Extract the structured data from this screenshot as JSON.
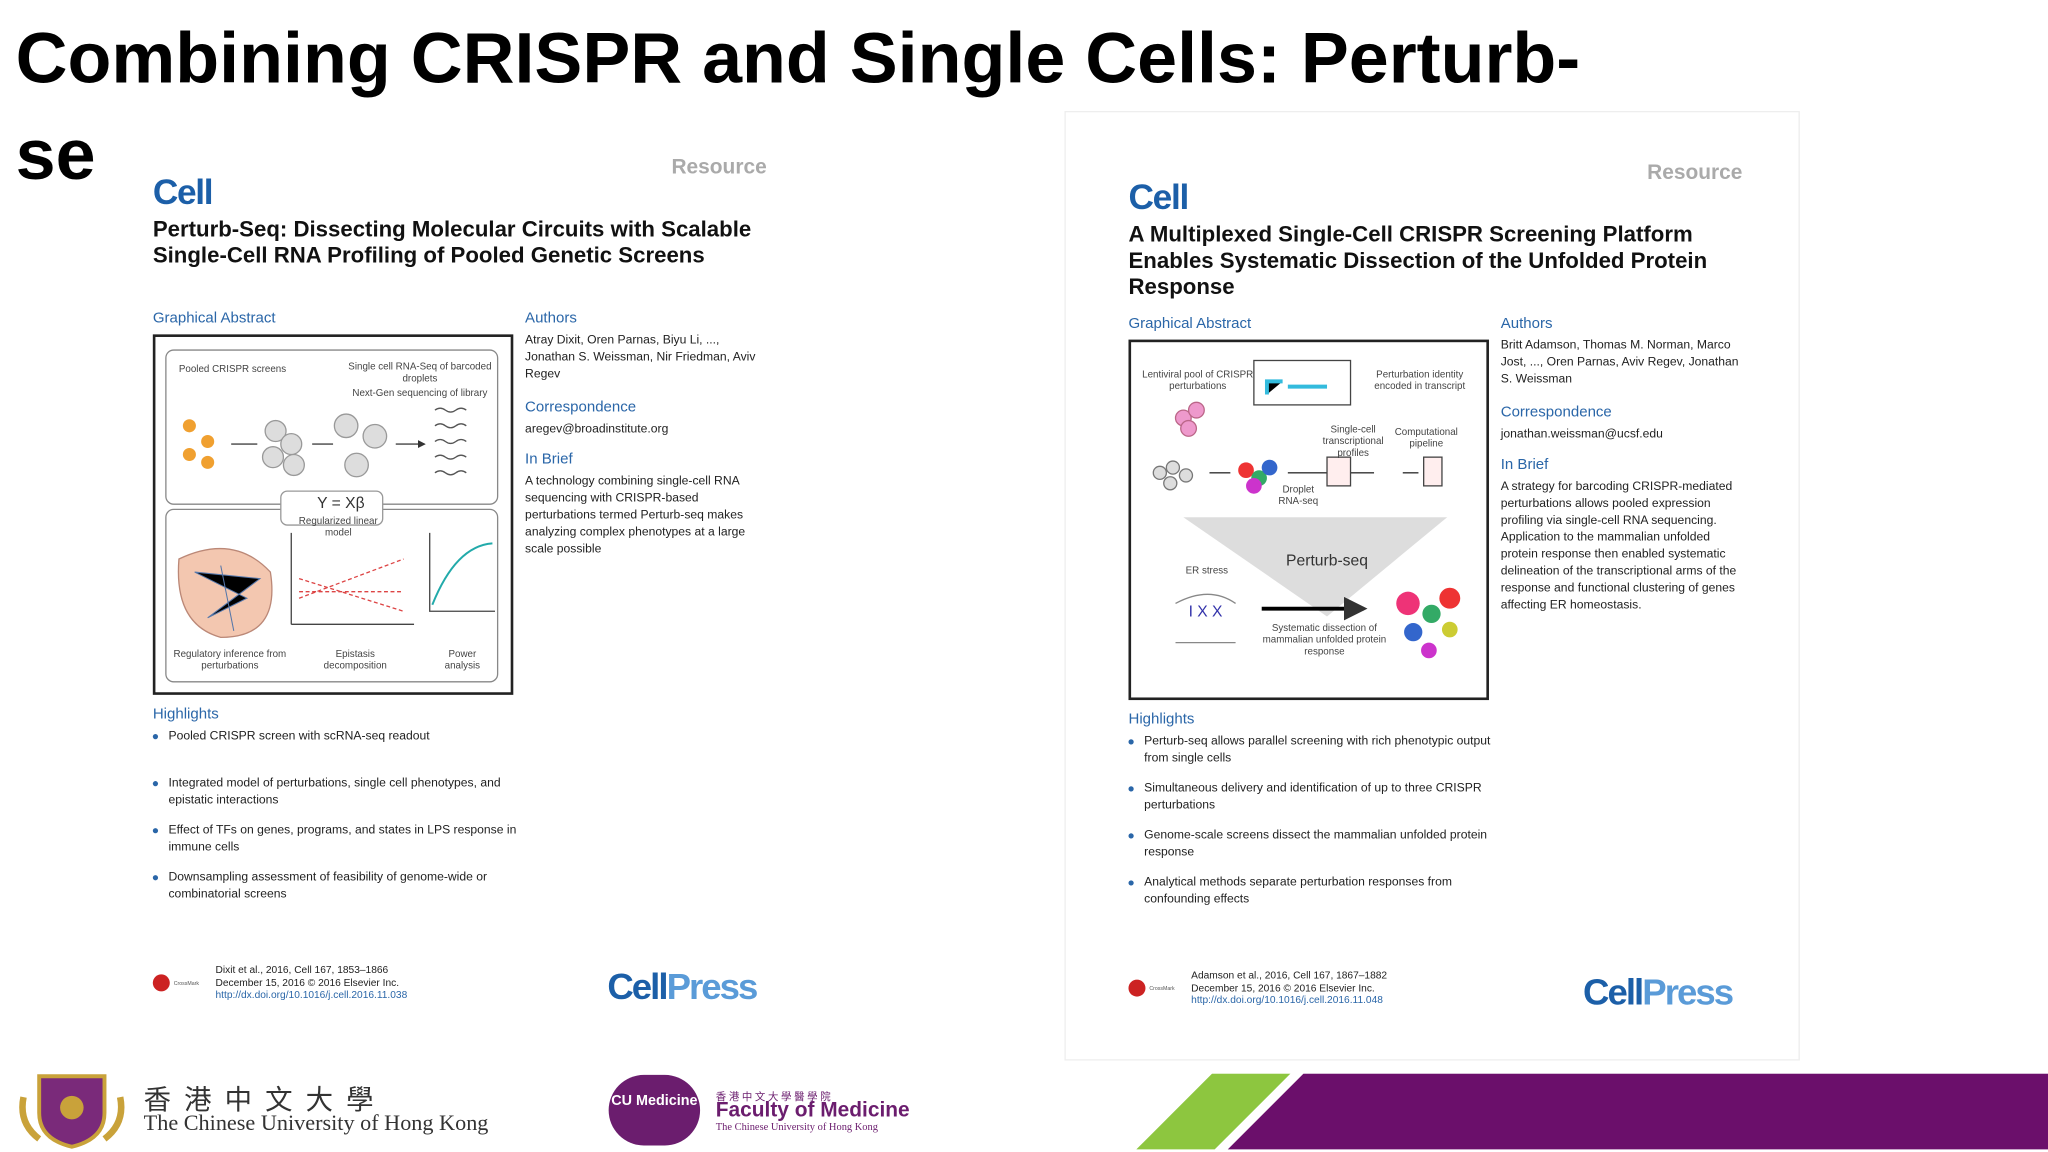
{
  "slide": {
    "title_lines": [
      "Combining CRISPR and Single Cells: Perturb-",
      "se"
    ]
  },
  "papers": [
    {
      "type": "Resource",
      "journal": "Cell",
      "title": "Perturb-Seq: Dissecting Molecular Circuits with Scalable Single-Cell RNA Profiling of Pooled Genetic Screens",
      "graphical_abstract": {
        "heading": "Graphical Abstract",
        "labels": [
          "Pooled CRISPR screens",
          "Single cell RNA-Seq of barcoded droplets",
          "Next-Gen sequencing of library",
          "Y = Xβ",
          "Regularized linear model",
          "Regulatory inference from perturbations",
          "Epistasis decomposition",
          "Power analysis"
        ]
      },
      "authors": {
        "heading": "Authors",
        "text": "Atray Dixit, Oren Parnas, Biyu Li, ..., Jonathan S. Weissman, Nir Friedman, Aviv Regev"
      },
      "correspondence": {
        "heading": "Correspondence",
        "text": "aregev@broadinstitute.org"
      },
      "in_brief": {
        "heading": "In Brief",
        "text": "A technology combining single-cell RNA sequencing with CRISPR-based perturbations termed Perturb-seq makes analyzing complex phenotypes at a large scale possible"
      },
      "highlights": {
        "heading": "Highlights",
        "items": [
          "Pooled CRISPR screen with scRNA-seq readout",
          "Integrated model of perturbations, single cell phenotypes, and epistatic interactions",
          "Effect of TFs on genes, programs, and states in LPS response in immune cells",
          "Downsampling assessment of feasibility of genome-wide or combinatorial screens"
        ]
      },
      "citation": [
        "Dixit et al., 2016, Cell 167, 1853–1866",
        "December 15, 2016 © 2016 Elsevier Inc.",
        "http://dx.doi.org/10.1016/j.cell.2016.11.038"
      ],
      "crossmark": "CrossMark",
      "publisher_parts": [
        "Cell",
        "Press"
      ]
    },
    {
      "type": "Resource",
      "journal": "Cell",
      "title": "A Multiplexed Single-Cell CRISPR Screening Platform Enables Systematic Dissection of the Unfolded Protein Response",
      "graphical_abstract": {
        "heading": "Graphical Abstract",
        "labels": [
          "Lentiviral pool of CRISPR perturbations",
          "Perturbation identity encoded in transcript",
          "Single-cell transcriptional profiles",
          "Computational pipeline",
          "Droplet RNA-seq",
          "Perturb-seq",
          "ER stress",
          "Systematic dissection of mammalian unfolded protein response"
        ]
      },
      "authors": {
        "heading": "Authors",
        "text": "Britt Adamson, Thomas M. Norman, Marco Jost, ..., Oren Parnas, Aviv Regev, Jonathan S. Weissman"
      },
      "correspondence": {
        "heading": "Correspondence",
        "text": "jonathan.weissman@ucsf.edu"
      },
      "in_brief": {
        "heading": "In Brief",
        "text": "A strategy for barcoding CRISPR-mediated perturbations allows pooled expression profiling via single-cell RNA sequencing. Application to the mammalian unfolded protein response then enabled systematic delineation of the transcriptional arms of the response and functional clustering of genes affecting ER homeostasis."
      },
      "highlights": {
        "heading": "Highlights",
        "items": [
          "Perturb-seq allows parallel screening with rich phenotypic output from single cells",
          "Simultaneous delivery and identification of up to three CRISPR perturbations",
          "Genome-scale screens dissect the mammalian unfolded protein response",
          "Analytical methods separate perturbation responses from confounding effects"
        ]
      },
      "citation": [
        "Adamson et al., 2016, Cell 167, 1867–1882",
        "December 15, 2016 © 2016 Elsevier Inc.",
        "http://dx.doi.org/10.1016/j.cell.2016.11.048"
      ],
      "crossmark": "CrossMark",
      "publisher_parts": [
        "Cell",
        "Press"
      ]
    }
  ],
  "footer": {
    "university_chinese": "香港中文大學",
    "university": "The Chinese University of Hong Kong",
    "faculty_logo": "CU Medicine",
    "faculty_chinese": "香港中文大學醫學院",
    "faculty": "Faculty of Medicine",
    "faculty_sub": "The Chinese University of Hong Kong"
  }
}
